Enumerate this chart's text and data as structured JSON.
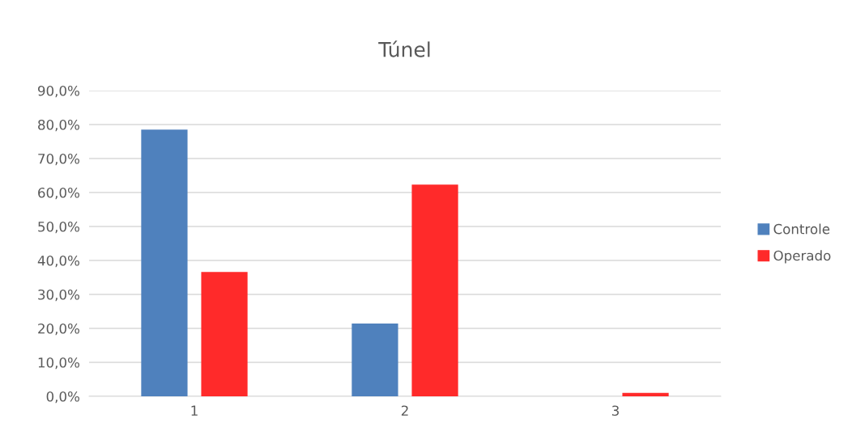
{
  "chart_data": {
    "type": "bar",
    "title": "Túnel",
    "categories": [
      "1",
      "2",
      "3"
    ],
    "series": [
      {
        "name": "Controle",
        "color": "#4f81bd",
        "values": [
          78.5,
          21.4,
          0
        ]
      },
      {
        "name": "Operado",
        "color": "#ff2a2a",
        "values": [
          36.6,
          62.3,
          1.0
        ]
      }
    ],
    "ylim": [
      0,
      90
    ],
    "yticks": [
      {
        "value": 0,
        "label": "0,0%"
      },
      {
        "value": 10,
        "label": "10,0%"
      },
      {
        "value": 20,
        "label": "20,0%"
      },
      {
        "value": 30,
        "label": "30,0%"
      },
      {
        "value": 40,
        "label": "40,0%"
      },
      {
        "value": 50,
        "label": "50,0%"
      },
      {
        "value": 60,
        "label": "60,0%"
      },
      {
        "value": 70,
        "label": "70,0%"
      },
      {
        "value": 80,
        "label": "80,0%"
      },
      {
        "value": 90,
        "label": "90,0%"
      }
    ],
    "grid": "y",
    "legend": "right"
  }
}
